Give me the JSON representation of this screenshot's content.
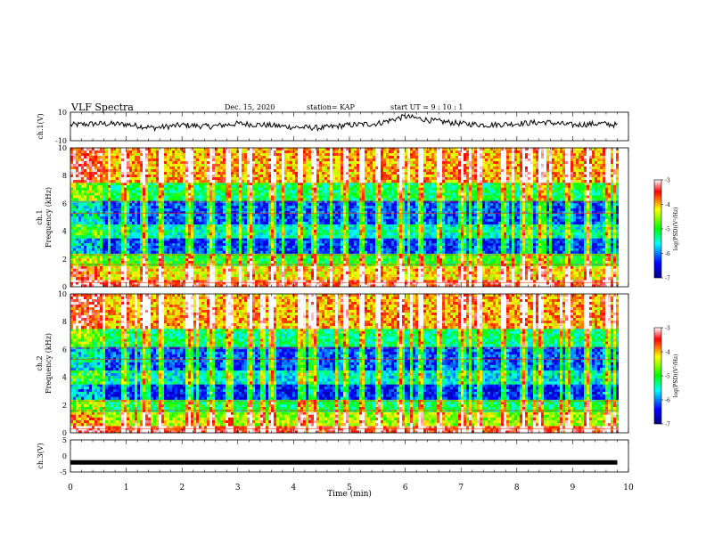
{
  "header": {
    "title": "VLF Spectra",
    "date": "Dec. 15, 2020",
    "station": "station= KAP",
    "start": "start  UT  =   9  : 10 : 1"
  },
  "chart_data": [
    {
      "type": "line",
      "panel": "ch1-waveform",
      "ylabel": "ch.1(V)",
      "ylim": [
        -10,
        10
      ],
      "yticks": [
        "10",
        "-10"
      ],
      "x": [
        0,
        0.5,
        1,
        1.5,
        2,
        2.5,
        3,
        3.5,
        4,
        4.5,
        5,
        5.5,
        6,
        6.5,
        7,
        7.5,
        8,
        8.5,
        9,
        9.5,
        9.8
      ],
      "y": [
        1,
        2,
        1.5,
        -1,
        1,
        0,
        2,
        1,
        -0.5,
        -1,
        1,
        2,
        7,
        4,
        2,
        1,
        2,
        3,
        1,
        2,
        1
      ],
      "color": "#000000"
    },
    {
      "type": "heatmap",
      "panel": "ch1-spectrogram",
      "ylabel": "ch.1\nFrequency (kHz)",
      "ylim": [
        0,
        10
      ],
      "yticks": [
        "0",
        "2",
        "4",
        "6",
        "8",
        "10"
      ],
      "colorbar": {
        "label": "log(PSD)(V²/Hz)",
        "range": [
          -7,
          -3
        ],
        "ticks": [
          "-3",
          "-4",
          "-5",
          "-6",
          "-7"
        ],
        "colors": [
          "#000080",
          "#0000ff",
          "#00ffff",
          "#00ff00",
          "#ffff00",
          "#ff0000",
          "#ffffff"
        ]
      },
      "bands_kHz": [
        {
          "range": [
            0,
            0.5
          ],
          "level": -3.5
        },
        {
          "range": [
            0.5,
            1.5
          ],
          "level": -4.2
        },
        {
          "range": [
            1.5,
            2.4
          ],
          "level": -5.0
        },
        {
          "range": [
            2.4,
            3.5
          ],
          "level": -6.3
        },
        {
          "range": [
            3.5,
            4.5
          ],
          "level": -5.5
        },
        {
          "range": [
            4.5,
            6.2
          ],
          "level": -6.2
        },
        {
          "range": [
            6.2,
            7.5
          ],
          "level": -5.2
        },
        {
          "range": [
            7.5,
            10
          ],
          "level": -4.0
        }
      ]
    },
    {
      "type": "heatmap",
      "panel": "ch2-spectrogram",
      "ylabel": "ch.2\nFrequency (kHz)",
      "ylim": [
        0,
        10
      ],
      "yticks": [
        "0",
        "2",
        "4",
        "6",
        "8",
        "10"
      ],
      "colorbar": {
        "label": "log(PSD)(V²/Hz)",
        "range": [
          -7,
          -3
        ],
        "ticks": [
          "-3",
          "-4",
          "-5",
          "-6",
          "-7"
        ],
        "colors": [
          "#000080",
          "#0000ff",
          "#00ffff",
          "#00ff00",
          "#ffff00",
          "#ff0000",
          "#ffffff"
        ]
      },
      "bands_kHz": [
        {
          "range": [
            0,
            0.5
          ],
          "level": -3.5
        },
        {
          "range": [
            0.5,
            1.5
          ],
          "level": -4.5
        },
        {
          "range": [
            1.5,
            2.4
          ],
          "level": -5.2
        },
        {
          "range": [
            2.4,
            3.5
          ],
          "level": -6.4
        },
        {
          "range": [
            3.5,
            4.5
          ],
          "level": -5.6
        },
        {
          "range": [
            4.5,
            6.2
          ],
          "level": -6.2
        },
        {
          "range": [
            6.2,
            7.5
          ],
          "level": -5.3
        },
        {
          "range": [
            7.5,
            10
          ],
          "level": -4.0
        }
      ]
    },
    {
      "type": "line",
      "panel": "ch3-waveform",
      "ylabel": "ch.3(V)",
      "ylim": [
        -5,
        5
      ],
      "yticks": [
        "5",
        "0",
        "-5"
      ],
      "x": [
        0,
        9.8
      ],
      "y": [
        -2,
        -2
      ],
      "color": "#000000"
    }
  ],
  "xaxis": {
    "label": "Time (min)",
    "range": [
      0,
      10
    ],
    "ticks": [
      "0",
      "1",
      "2",
      "3",
      "4",
      "5",
      "6",
      "7",
      "8",
      "9",
      "10"
    ]
  },
  "burst_times_min": [
    0.95,
    1.3,
    1.6,
    2.1,
    2.5,
    2.8,
    3.2,
    3.6,
    4.1,
    4.35,
    4.9,
    5.2,
    5.5,
    5.9,
    6.25,
    6.6,
    7.0,
    7.3,
    7.75,
    8.1,
    8.4,
    8.9,
    9.25,
    9.6
  ],
  "data_end_min": 9.8,
  "quiet_before_min": 0.55
}
